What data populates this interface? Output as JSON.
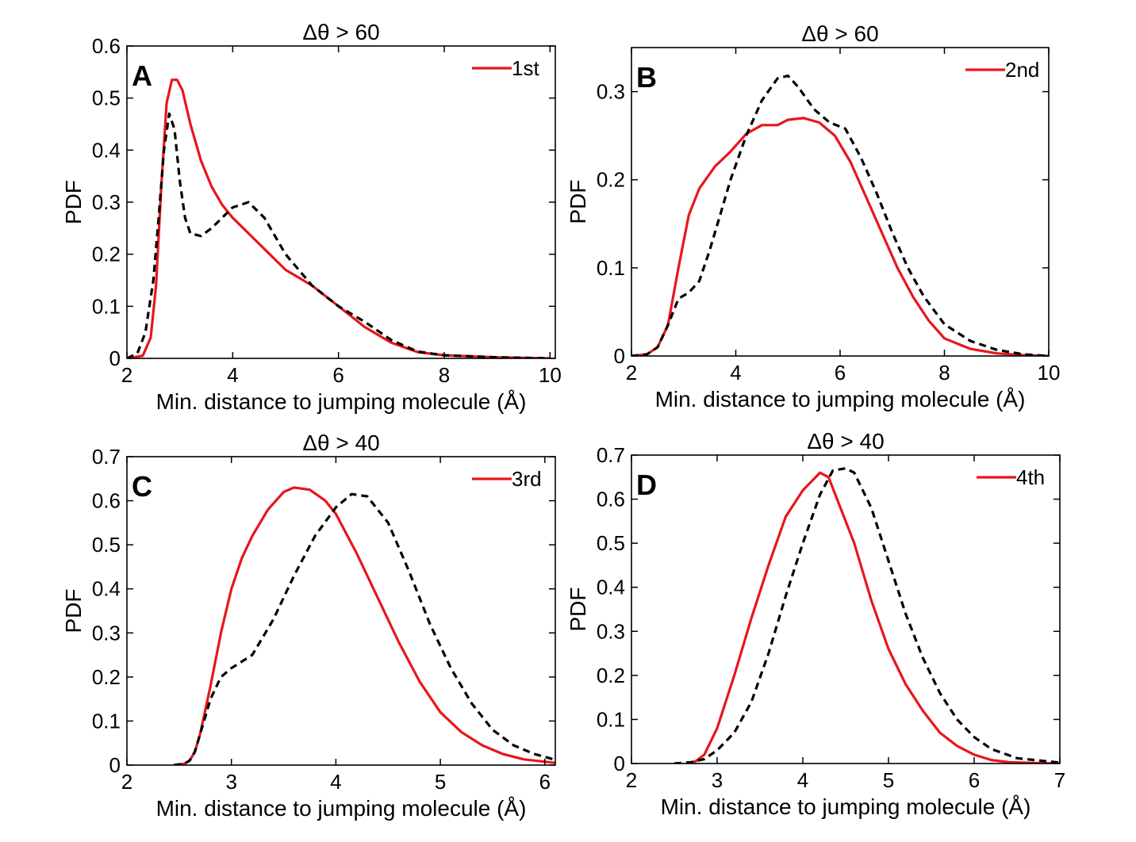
{
  "chart_data": [
    {
      "panel": "A",
      "type": "line",
      "title": "Δθ > 60",
      "xlabel": "Min. distance to jumping molecule (Å)",
      "ylabel": "PDF",
      "xlim": [
        2,
        10.1
      ],
      "ylim": [
        0,
        0.6
      ],
      "xticks": [
        2,
        4,
        6,
        8,
        10
      ],
      "yticks": [
        0,
        0.1,
        0.2,
        0.3,
        0.4,
        0.5,
        0.6
      ],
      "xtick_labels": [
        "2",
        "4",
        "6",
        "8",
        "10"
      ],
      "ytick_labels": [
        "0",
        "0.1",
        "0.2",
        "0.3",
        "0.4",
        "0.5",
        "0.6"
      ],
      "legend": "top-right",
      "grid": false,
      "series": [
        {
          "name": "1st",
          "color": "#e8161b",
          "style": "solid",
          "x": [
            2.0,
            2.3,
            2.45,
            2.55,
            2.65,
            2.75,
            2.85,
            2.95,
            3.05,
            3.2,
            3.4,
            3.6,
            3.8,
            4.0,
            4.3,
            4.7,
            5.0,
            5.5,
            6.0,
            6.5,
            7.0,
            7.5,
            8.0,
            9.0,
            10.0
          ],
          "y": [
            0.0,
            0.005,
            0.04,
            0.14,
            0.33,
            0.49,
            0.535,
            0.535,
            0.515,
            0.45,
            0.38,
            0.33,
            0.295,
            0.27,
            0.24,
            0.2,
            0.17,
            0.14,
            0.1,
            0.06,
            0.03,
            0.012,
            0.006,
            0.002,
            0.0
          ]
        },
        {
          "name": "",
          "color": "#000000",
          "style": "dashed",
          "x": [
            2.0,
            2.2,
            2.35,
            2.5,
            2.6,
            2.7,
            2.8,
            2.9,
            3.0,
            3.1,
            3.2,
            3.4,
            3.6,
            3.8,
            4.0,
            4.3,
            4.6,
            5.0,
            5.5,
            6.0,
            6.5,
            7.0,
            7.5,
            8.0,
            9.0,
            10.0
          ],
          "y": [
            0.0,
            0.01,
            0.05,
            0.15,
            0.27,
            0.4,
            0.47,
            0.44,
            0.34,
            0.27,
            0.24,
            0.235,
            0.25,
            0.27,
            0.29,
            0.3,
            0.27,
            0.2,
            0.14,
            0.1,
            0.07,
            0.035,
            0.013,
            0.006,
            0.002,
            0.0
          ]
        }
      ]
    },
    {
      "panel": "B",
      "type": "line",
      "title": "Δθ > 60",
      "xlabel": "Min. distance to jumping molecule (Å)",
      "ylabel": "PDF",
      "xlim": [
        2,
        10
      ],
      "ylim": [
        0,
        0.35
      ],
      "xticks": [
        2,
        4,
        6,
        8,
        10
      ],
      "yticks": [
        0,
        0.1,
        0.2,
        0.3
      ],
      "xtick_labels": [
        "2",
        "4",
        "6",
        "8",
        "10"
      ],
      "ytick_labels": [
        "0",
        "0.1",
        "0.2",
        "0.3"
      ],
      "legend": "top-right",
      "grid": false,
      "series": [
        {
          "name": "2nd",
          "color": "#e8161b",
          "style": "solid",
          "x": [
            2.0,
            2.3,
            2.5,
            2.7,
            2.9,
            3.1,
            3.3,
            3.6,
            3.9,
            4.2,
            4.5,
            4.8,
            5.0,
            5.3,
            5.6,
            5.9,
            6.2,
            6.5,
            6.8,
            7.1,
            7.4,
            7.7,
            8.0,
            8.5,
            9.0,
            9.5,
            10.0
          ],
          "y": [
            0.0,
            0.002,
            0.01,
            0.035,
            0.1,
            0.16,
            0.19,
            0.215,
            0.232,
            0.252,
            0.262,
            0.262,
            0.268,
            0.27,
            0.265,
            0.25,
            0.22,
            0.18,
            0.14,
            0.1,
            0.067,
            0.04,
            0.02,
            0.008,
            0.003,
            0.001,
            0.0
          ]
        },
        {
          "name": "",
          "color": "#000000",
          "style": "dashed",
          "x": [
            2.0,
            2.3,
            2.5,
            2.7,
            2.9,
            3.1,
            3.3,
            3.5,
            3.7,
            3.9,
            4.2,
            4.5,
            4.8,
            5.0,
            5.2,
            5.5,
            5.8,
            6.1,
            6.4,
            6.7,
            7.0,
            7.3,
            7.6,
            8.0,
            8.5,
            9.0,
            9.5,
            10.0
          ],
          "y": [
            0.0,
            0.002,
            0.01,
            0.035,
            0.065,
            0.072,
            0.085,
            0.12,
            0.16,
            0.2,
            0.25,
            0.29,
            0.315,
            0.318,
            0.305,
            0.28,
            0.265,
            0.258,
            0.225,
            0.185,
            0.14,
            0.1,
            0.068,
            0.036,
            0.017,
            0.007,
            0.002,
            0.0
          ]
        }
      ]
    },
    {
      "panel": "C",
      "type": "line",
      "title": "Δθ > 40",
      "xlabel": "Min. distance to jumping molecule (Å)",
      "ylabel": "PDF",
      "xlim": [
        2,
        6.1
      ],
      "ylim": [
        0,
        0.7
      ],
      "xticks": [
        2,
        3,
        4,
        5,
        6
      ],
      "yticks": [
        0,
        0.1,
        0.2,
        0.3,
        0.4,
        0.5,
        0.6,
        0.7
      ],
      "xtick_labels": [
        "2",
        "3",
        "4",
        "5",
        "6"
      ],
      "ytick_labels": [
        "0",
        "0.1",
        "0.2",
        "0.3",
        "0.4",
        "0.5",
        "0.6",
        "0.7"
      ],
      "legend": "top-right",
      "grid": false,
      "series": [
        {
          "name": "3rd",
          "color": "#e8161b",
          "style": "solid",
          "x": [
            2.45,
            2.55,
            2.6,
            2.65,
            2.7,
            2.8,
            2.9,
            3.0,
            3.1,
            3.2,
            3.35,
            3.5,
            3.6,
            3.75,
            3.9,
            4.0,
            4.2,
            4.4,
            4.6,
            4.8,
            5.0,
            5.2,
            5.4,
            5.6,
            5.8,
            6.1
          ],
          "y": [
            0.0,
            0.003,
            0.01,
            0.03,
            0.07,
            0.18,
            0.3,
            0.4,
            0.47,
            0.52,
            0.58,
            0.62,
            0.63,
            0.625,
            0.6,
            0.57,
            0.48,
            0.38,
            0.28,
            0.19,
            0.12,
            0.075,
            0.045,
            0.025,
            0.013,
            0.005
          ]
        },
        {
          "name": "",
          "color": "#000000",
          "style": "dashed",
          "x": [
            2.45,
            2.55,
            2.6,
            2.65,
            2.7,
            2.8,
            2.9,
            3.0,
            3.2,
            3.4,
            3.6,
            3.8,
            4.0,
            4.15,
            4.3,
            4.5,
            4.7,
            4.9,
            5.1,
            5.3,
            5.5,
            5.7,
            5.9,
            6.1
          ],
          "y": [
            0.0,
            0.003,
            0.01,
            0.03,
            0.07,
            0.15,
            0.2,
            0.22,
            0.25,
            0.33,
            0.43,
            0.52,
            0.585,
            0.615,
            0.61,
            0.55,
            0.44,
            0.32,
            0.22,
            0.14,
            0.08,
            0.045,
            0.025,
            0.012
          ]
        }
      ]
    },
    {
      "panel": "D",
      "type": "line",
      "title": "Δθ > 40",
      "xlabel": "Min. distance to jumping molecule (Å)",
      "ylabel": "PDF",
      "xlim": [
        2,
        7
      ],
      "ylim": [
        0,
        0.7
      ],
      "xticks": [
        2,
        3,
        4,
        5,
        6,
        7
      ],
      "yticks": [
        0,
        0.1,
        0.2,
        0.3,
        0.4,
        0.5,
        0.6,
        0.7
      ],
      "xtick_labels": [
        "2",
        "3",
        "4",
        "5",
        "6",
        "7"
      ],
      "ytick_labels": [
        "0",
        "0.1",
        "0.2",
        "0.3",
        "0.4",
        "0.5",
        "0.6",
        "0.7"
      ],
      "legend": "top-right",
      "grid": false,
      "series": [
        {
          "name": "4th",
          "color": "#e8161b",
          "style": "solid",
          "x": [
            2.65,
            2.75,
            2.85,
            3.0,
            3.2,
            3.4,
            3.6,
            3.8,
            4.0,
            4.2,
            4.3,
            4.4,
            4.6,
            4.8,
            5.0,
            5.2,
            5.4,
            5.6,
            5.8,
            6.0,
            6.2,
            6.4,
            6.7,
            7.0
          ],
          "y": [
            0.0,
            0.005,
            0.02,
            0.08,
            0.2,
            0.33,
            0.45,
            0.56,
            0.62,
            0.66,
            0.65,
            0.6,
            0.5,
            0.37,
            0.26,
            0.18,
            0.12,
            0.07,
            0.04,
            0.02,
            0.008,
            0.003,
            0.001,
            0.0
          ]
        },
        {
          "name": "",
          "color": "#000000",
          "style": "dashed",
          "x": [
            2.5,
            2.7,
            2.85,
            3.0,
            3.2,
            3.4,
            3.6,
            3.8,
            4.0,
            4.2,
            4.35,
            4.5,
            4.6,
            4.8,
            5.0,
            5.2,
            5.4,
            5.6,
            5.8,
            6.0,
            6.2,
            6.5,
            7.0
          ],
          "y": [
            0.0,
            0.003,
            0.01,
            0.03,
            0.07,
            0.14,
            0.25,
            0.38,
            0.5,
            0.61,
            0.665,
            0.67,
            0.66,
            0.58,
            0.46,
            0.34,
            0.24,
            0.16,
            0.1,
            0.06,
            0.033,
            0.012,
            0.002
          ]
        }
      ]
    }
  ]
}
